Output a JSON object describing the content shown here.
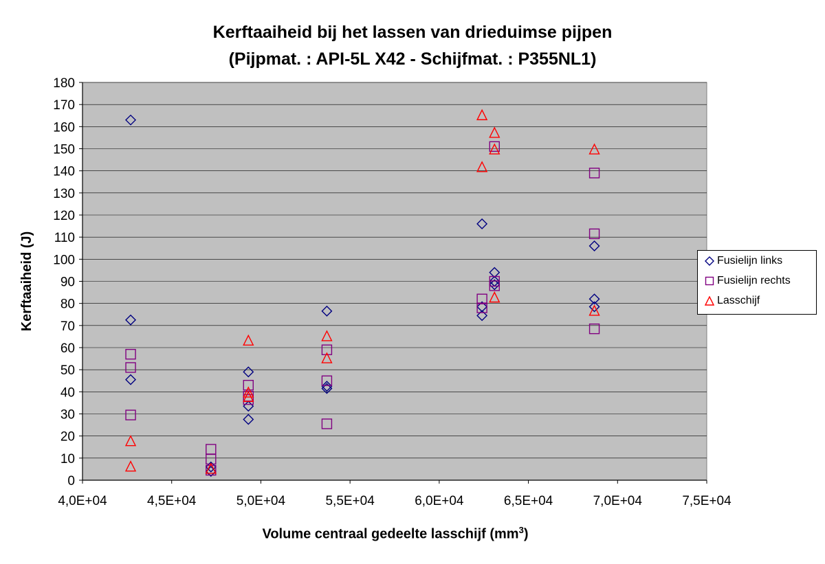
{
  "chart_data": {
    "type": "scatter",
    "title_line1": "Kerftaaiheid bij het lassen van drieduimse pijpen",
    "title_line2": "(Pijpmat. : API-5L X42 - Schijfmat. : P355NL1)",
    "xlabel": "Volume centraal gedeelte lasschijf (mm",
    "xlabel_sup": "3",
    "xlabel_end": ")",
    "ylabel": "Kerftaaiheid (J)",
    "xlim": [
      40000,
      75000
    ],
    "ylim": [
      0,
      180
    ],
    "xticks": [
      40000,
      45000,
      50000,
      55000,
      60000,
      65000,
      70000,
      75000
    ],
    "xtick_labels": [
      "4,0E+04",
      "4,5E+04",
      "5,0E+04",
      "5,5E+04",
      "6,0E+04",
      "6,5E+04",
      "7,0E+04",
      "7,5E+04"
    ],
    "yticks": [
      0,
      10,
      20,
      30,
      40,
      50,
      60,
      70,
      80,
      90,
      100,
      110,
      120,
      130,
      140,
      150,
      160,
      170,
      180
    ],
    "grid": true,
    "legend_position": "right",
    "plot_background": "#c0c0c0",
    "series": [
      {
        "name": "Fusielijn links",
        "marker": "diamond",
        "color": "#000080",
        "points": [
          [
            42700,
            163
          ],
          [
            42700,
            72.5
          ],
          [
            42700,
            45.5
          ],
          [
            47200,
            6
          ],
          [
            47200,
            4
          ],
          [
            49300,
            49
          ],
          [
            49300,
            33.5
          ],
          [
            49300,
            27.5
          ],
          [
            53700,
            76.5
          ],
          [
            53700,
            42.5
          ],
          [
            53700,
            41.5
          ],
          [
            62400,
            116
          ],
          [
            62400,
            78.5
          ],
          [
            62400,
            74.5
          ],
          [
            63100,
            94
          ],
          [
            63100,
            90
          ],
          [
            63100,
            88.5
          ],
          [
            68700,
            106
          ],
          [
            68700,
            82
          ],
          [
            68700,
            78.5
          ]
        ]
      },
      {
        "name": "Fusielijn rechts",
        "marker": "square",
        "color": "#800080",
        "points": [
          [
            42700,
            57
          ],
          [
            42700,
            51
          ],
          [
            42700,
            29.5
          ],
          [
            47200,
            14
          ],
          [
            47200,
            9.5
          ],
          [
            47200,
            4.5
          ],
          [
            49300,
            43
          ],
          [
            49300,
            38
          ],
          [
            49300,
            36.5
          ],
          [
            53700,
            59
          ],
          [
            53700,
            45
          ],
          [
            53700,
            25.5
          ],
          [
            62400,
            82
          ],
          [
            62400,
            78
          ],
          [
            63100,
            151
          ],
          [
            63100,
            90
          ],
          [
            63100,
            88
          ],
          [
            68700,
            139
          ],
          [
            68700,
            111.5
          ],
          [
            68700,
            68.5
          ]
        ]
      },
      {
        "name": "Lasschijf",
        "marker": "triangle",
        "color": "#ff0000",
        "points": [
          [
            42700,
            17.5
          ],
          [
            42700,
            6
          ],
          [
            47200,
            5
          ],
          [
            49300,
            63
          ],
          [
            49300,
            39.5
          ],
          [
            49300,
            37.5
          ],
          [
            53700,
            65
          ],
          [
            53700,
            55
          ],
          [
            62400,
            165
          ],
          [
            62400,
            141.5
          ],
          [
            63100,
            157
          ],
          [
            63100,
            149.5
          ],
          [
            63100,
            82.5
          ],
          [
            68700,
            149.5
          ],
          [
            68700,
            76.5
          ]
        ]
      }
    ]
  }
}
